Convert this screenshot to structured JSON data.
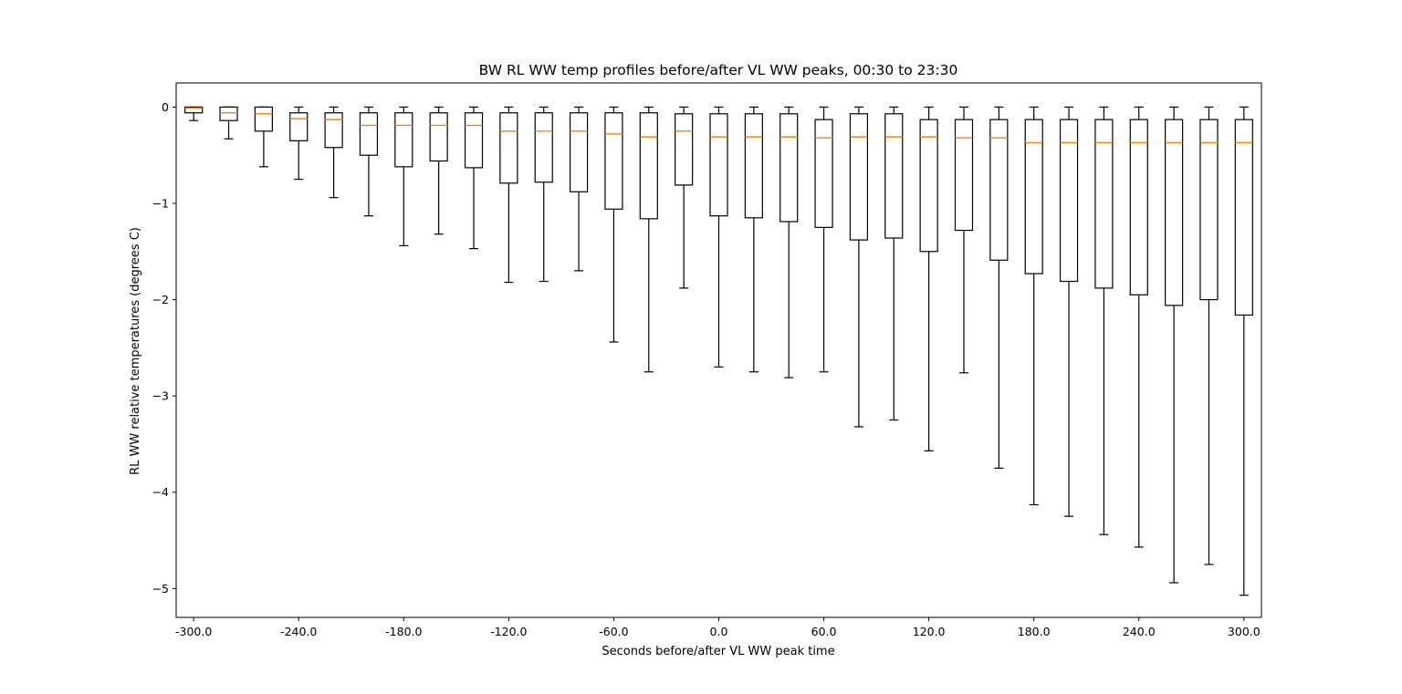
{
  "chart_data": {
    "type": "boxplot",
    "title": "BW RL WW temp profiles before/after VL WW peaks, 00:30 to 23:30",
    "xlabel": "Seconds before/after VL WW peak time",
    "ylabel": "RL WW relative temperatures (degrees C)",
    "ylim": [
      -5.3,
      0.25
    ],
    "xlim": [
      -310,
      310
    ],
    "grid": false,
    "xticks": [
      -300,
      -240,
      -180,
      -120,
      -60,
      0,
      60,
      120,
      180,
      240,
      300
    ],
    "xtick_labels": [
      "-300.0",
      "-240.0",
      "-180.0",
      "-120.0",
      "-60.0",
      "0.0",
      "60.0",
      "120.0",
      "180.0",
      "240.0",
      "300.0"
    ],
    "yticks": [
      0,
      -1,
      -2,
      -3,
      -4,
      -5
    ],
    "ytick_labels": [
      "0",
      "−1",
      "−2",
      "−3",
      "−4",
      "−5"
    ],
    "colors": {
      "box": "#000000",
      "median": "#ff7f0e"
    },
    "boxes": [
      {
        "x": -300,
        "whislo": -0.14,
        "q1": -0.06,
        "med": -0.01,
        "q3": 0.0,
        "whishi": 0.0
      },
      {
        "x": -280,
        "whislo": -0.33,
        "q1": -0.14,
        "med": -0.06,
        "q3": 0.0,
        "whishi": 0.0
      },
      {
        "x": -260,
        "whislo": -0.62,
        "q1": -0.25,
        "med": -0.07,
        "q3": 0.0,
        "whishi": 0.0
      },
      {
        "x": -240,
        "whislo": -0.75,
        "q1": -0.35,
        "med": -0.12,
        "q3": -0.06,
        "whishi": 0.0
      },
      {
        "x": -220,
        "whislo": -0.94,
        "q1": -0.42,
        "med": -0.13,
        "q3": -0.06,
        "whishi": 0.0
      },
      {
        "x": -200,
        "whislo": -1.13,
        "q1": -0.5,
        "med": -0.19,
        "q3": -0.06,
        "whishi": 0.0
      },
      {
        "x": -180,
        "whislo": -1.44,
        "q1": -0.62,
        "med": -0.19,
        "q3": -0.06,
        "whishi": 0.0
      },
      {
        "x": -160,
        "whislo": -1.32,
        "q1": -0.56,
        "med": -0.19,
        "q3": -0.06,
        "whishi": 0.0
      },
      {
        "x": -140,
        "whislo": -1.47,
        "q1": -0.63,
        "med": -0.19,
        "q3": -0.06,
        "whishi": 0.0
      },
      {
        "x": -120,
        "whislo": -1.82,
        "q1": -0.79,
        "med": -0.25,
        "q3": -0.06,
        "whishi": 0.0
      },
      {
        "x": -100,
        "whislo": -1.81,
        "q1": -0.78,
        "med": -0.25,
        "q3": -0.06,
        "whishi": 0.0
      },
      {
        "x": -80,
        "whislo": -1.7,
        "q1": -0.88,
        "med": -0.25,
        "q3": -0.06,
        "whishi": 0.0
      },
      {
        "x": -60,
        "whislo": -2.44,
        "q1": -1.06,
        "med": -0.28,
        "q3": -0.06,
        "whishi": 0.0
      },
      {
        "x": -40,
        "whislo": -2.75,
        "q1": -1.16,
        "med": -0.31,
        "q3": -0.06,
        "whishi": 0.0
      },
      {
        "x": -20,
        "whislo": -1.88,
        "q1": -0.81,
        "med": -0.25,
        "q3": -0.07,
        "whishi": 0.0
      },
      {
        "x": 0,
        "whislo": -2.7,
        "q1": -1.13,
        "med": -0.31,
        "q3": -0.07,
        "whishi": 0.0
      },
      {
        "x": 20,
        "whislo": -2.75,
        "q1": -1.15,
        "med": -0.31,
        "q3": -0.07,
        "whishi": 0.0
      },
      {
        "x": 40,
        "whislo": -2.81,
        "q1": -1.19,
        "med": -0.31,
        "q3": -0.07,
        "whishi": 0.0
      },
      {
        "x": 60,
        "whislo": -2.75,
        "q1": -1.25,
        "med": -0.32,
        "q3": -0.13,
        "whishi": 0.0
      },
      {
        "x": 80,
        "whislo": -3.32,
        "q1": -1.38,
        "med": -0.31,
        "q3": -0.07,
        "whishi": 0.0
      },
      {
        "x": 100,
        "whislo": -3.25,
        "q1": -1.36,
        "med": -0.31,
        "q3": -0.07,
        "whishi": 0.0
      },
      {
        "x": 120,
        "whislo": -3.57,
        "q1": -1.5,
        "med": -0.31,
        "q3": -0.13,
        "whishi": 0.0
      },
      {
        "x": 140,
        "whislo": -2.76,
        "q1": -1.28,
        "med": -0.32,
        "q3": -0.13,
        "whishi": 0.0
      },
      {
        "x": 160,
        "whislo": -3.75,
        "q1": -1.59,
        "med": -0.32,
        "q3": -0.13,
        "whishi": 0.0
      },
      {
        "x": 180,
        "whislo": -4.13,
        "q1": -1.73,
        "med": -0.37,
        "q3": -0.13,
        "whishi": 0.0
      },
      {
        "x": 200,
        "whislo": -4.25,
        "q1": -1.81,
        "med": -0.37,
        "q3": -0.13,
        "whishi": 0.0
      },
      {
        "x": 220,
        "whislo": -4.44,
        "q1": -1.88,
        "med": -0.37,
        "q3": -0.13,
        "whishi": 0.0
      },
      {
        "x": 240,
        "whislo": -4.57,
        "q1": -1.95,
        "med": -0.37,
        "q3": -0.13,
        "whishi": 0.0
      },
      {
        "x": 260,
        "whislo": -4.94,
        "q1": -2.06,
        "med": -0.37,
        "q3": -0.13,
        "whishi": 0.0
      },
      {
        "x": 280,
        "whislo": -4.75,
        "q1": -2.0,
        "med": -0.37,
        "q3": -0.13,
        "whishi": 0.0
      },
      {
        "x": 300,
        "whislo": -5.07,
        "q1": -2.16,
        "med": -0.37,
        "q3": -0.13,
        "whishi": 0.0
      }
    ]
  }
}
